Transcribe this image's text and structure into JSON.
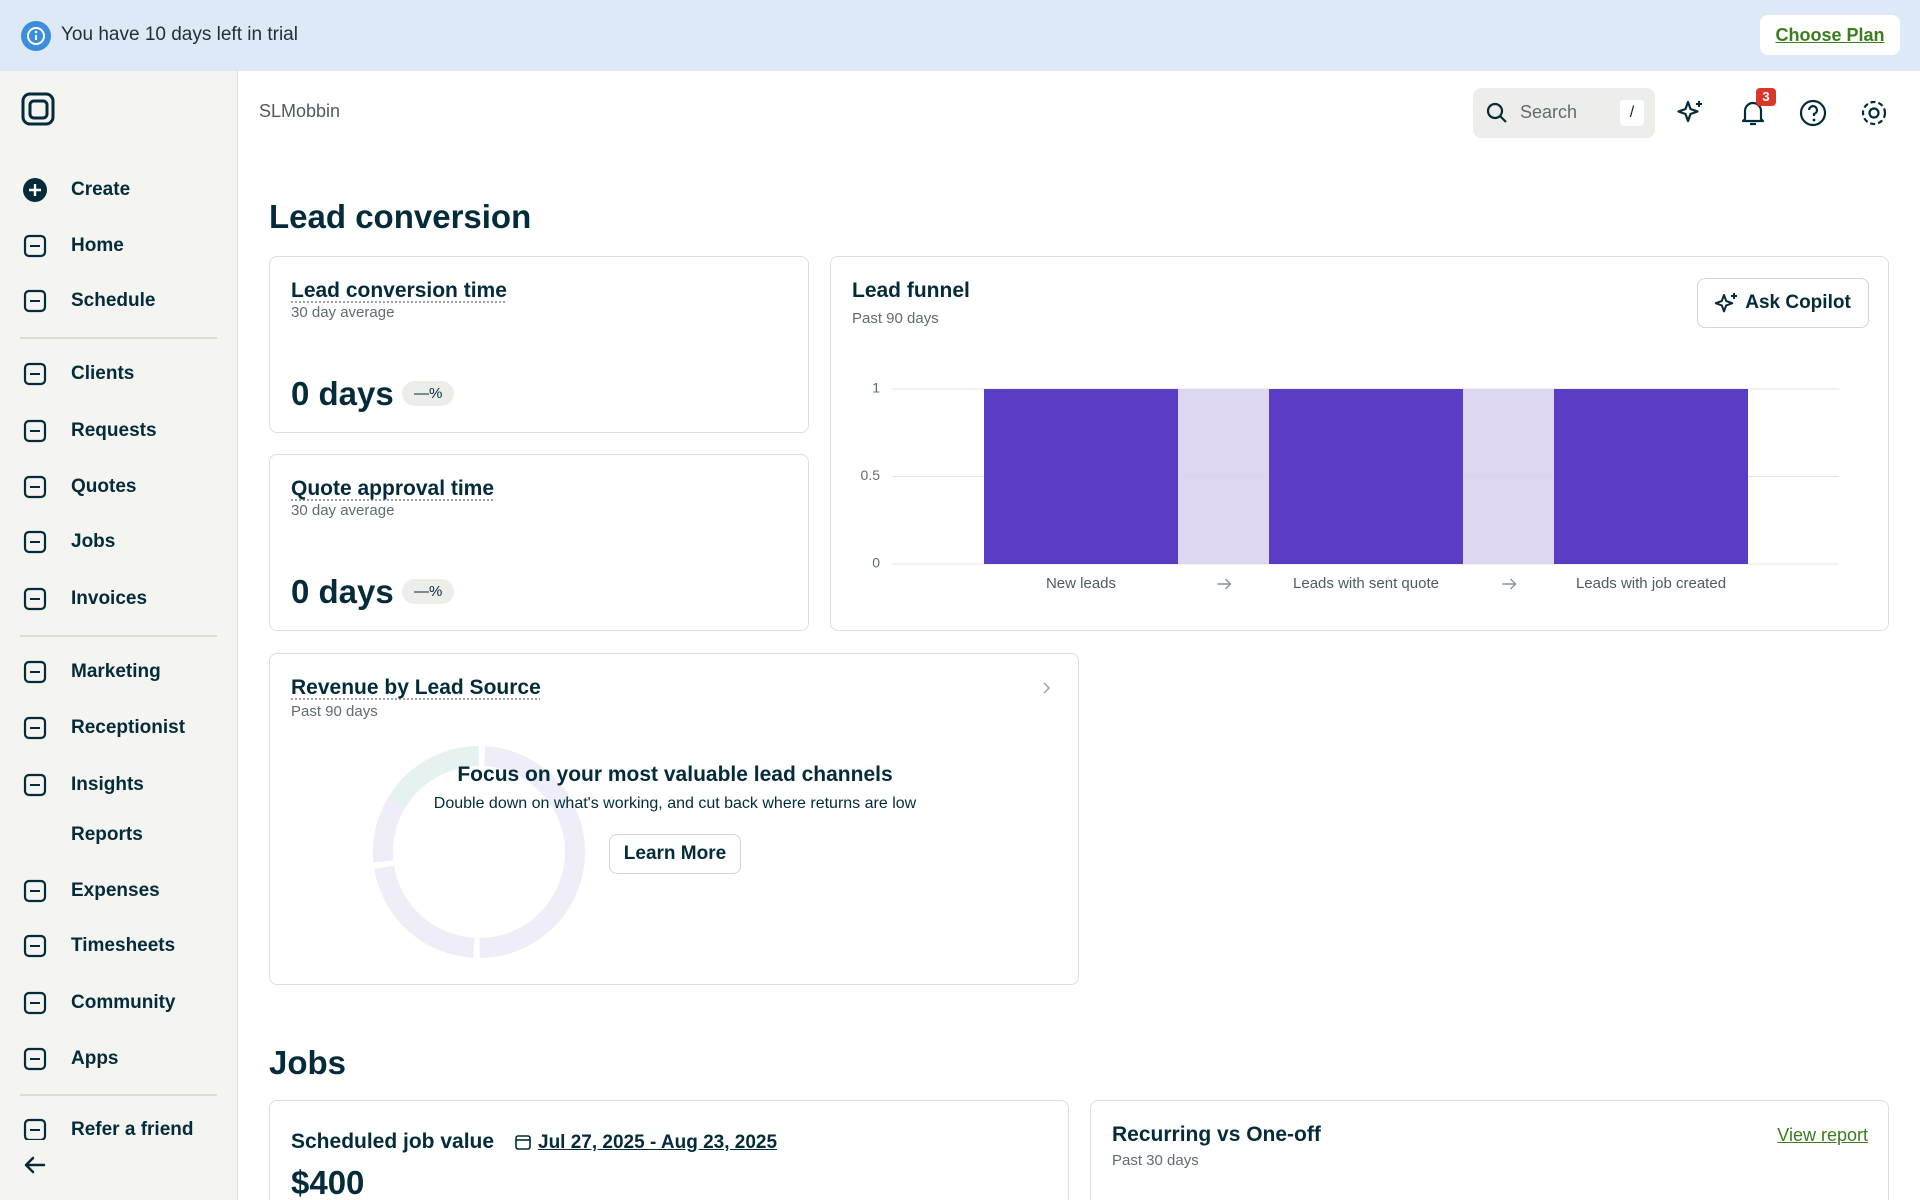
{
  "banner": {
    "message": "You have 10 days left in trial",
    "action": "Choose Plan"
  },
  "sidebar": {
    "items": [
      "Create",
      "Home",
      "Schedule",
      "Clients",
      "Requests",
      "Quotes",
      "Jobs",
      "Invoices",
      "Marketing",
      "Receptionist",
      "Insights",
      "Reports",
      "Expenses",
      "Timesheets",
      "Community",
      "Apps",
      "Refer a friend"
    ]
  },
  "header": {
    "account": "SLMobbin",
    "search_placeholder": "Search",
    "search_shortcut": "/",
    "notification_count": 3
  },
  "lead_conversion": {
    "heading": "Lead conversion",
    "cards": [
      {
        "title": "Lead conversion time",
        "subtitle": "30 day average",
        "value": "0 days",
        "change": "—%"
      },
      {
        "title": "Quote approval time",
        "subtitle": "30 day average",
        "value": "0 days",
        "change": "—%"
      }
    ]
  },
  "chart_data": {
    "type": "bar",
    "title": "Lead funnel",
    "subtitle": "Past 90 days",
    "action": "Ask Copilot",
    "categories": [
      "New leads",
      "Leads with sent quote",
      "Leads with job created"
    ],
    "values": [
      1,
      1,
      1
    ],
    "color": "#5b3cc4",
    "connector_color": "#d8d0f0",
    "ylim": [
      0,
      1
    ],
    "yticks": [
      0,
      0.5,
      1
    ],
    "grid": true
  },
  "revenue_by_lead_source": {
    "title": "Revenue by Lead Source",
    "subtitle": "Past 90 days",
    "empty_title": "Focus on your most valuable lead channels",
    "empty_text": "Double down on what's working, and cut back where returns are low",
    "action": "Learn More"
  },
  "jobs": {
    "heading": "Jobs",
    "scheduled": {
      "title": "Scheduled job value",
      "date_range": "Jul 27, 2025 - Aug 23, 2025",
      "value": "$400"
    },
    "recurring": {
      "title": "Recurring vs One-off",
      "subtitle": "Past 30 days",
      "action": "View report"
    }
  }
}
